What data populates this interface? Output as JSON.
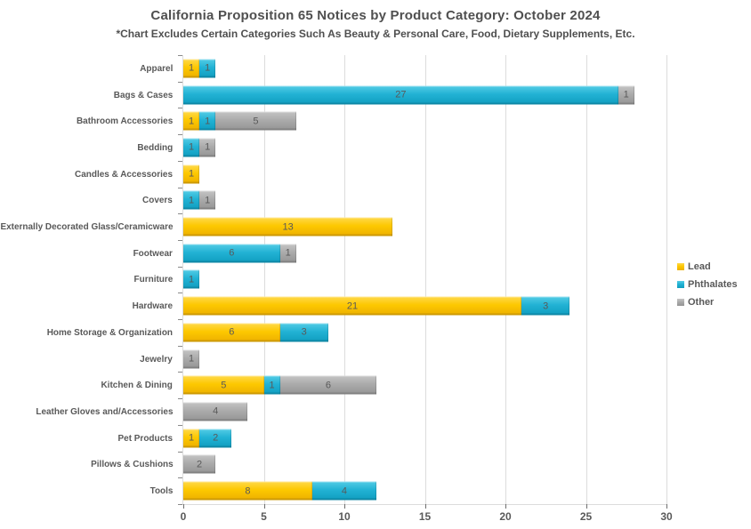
{
  "title": "California Proposition 65 Notices by Product Category: October 2024",
  "subtitle": "*Chart Excludes Certain Categories Such As Beauty & Personal Care, Food, Dietary Supplements, Etc.",
  "colors": {
    "text": "#595959",
    "title_text": "#4f4f4f",
    "gridline": "#dcdcdc",
    "tick": "#6e6e6e",
    "background": "#ffffff"
  },
  "chart_data": {
    "type": "bar",
    "orientation": "horizontal",
    "stacked": true,
    "title": "California Proposition 65 Notices by Product Category: October 2024",
    "subtitle": "*Chart Excludes Certain Categories Such As Beauty & Personal Care, Food, Dietary Supplements, Etc.",
    "xlabel": "",
    "ylabel": "",
    "xlim": [
      0,
      30
    ],
    "x_ticks": [
      0,
      5,
      10,
      15,
      20,
      25,
      30
    ],
    "grid": "vertical",
    "legend_position": "right",
    "categories": [
      "Apparel",
      "Bags & Cases",
      "Bathroom Accessories",
      "Bedding",
      "Candles & Accessories",
      "Covers",
      "Externally Decorated Glass/Ceramicware",
      "Footwear",
      "Furniture",
      "Hardware",
      "Home Storage & Organization",
      "Jewelry",
      "Kitchen & Dining",
      "Leather Gloves and/Accessories",
      "Pet Products",
      "Pillows & Cushions",
      "Tools"
    ],
    "series": [
      {
        "name": "Lead",
        "color_light": "#ffd94d",
        "color_base": "#fdc800",
        "color_dark": "#edb000",
        "values": [
          1,
          0,
          1,
          0,
          1,
          0,
          13,
          0,
          0,
          21,
          6,
          0,
          5,
          0,
          1,
          0,
          8
        ]
      },
      {
        "name": "Phthalates",
        "color_light": "#54cce6",
        "color_base": "#22b2d4",
        "color_dark": "#0f9dbf",
        "values": [
          1,
          27,
          1,
          1,
          0,
          1,
          0,
          6,
          1,
          3,
          3,
          0,
          1,
          0,
          2,
          0,
          4
        ]
      },
      {
        "name": "Other",
        "color_light": "#c4c4c4",
        "color_base": "#ababab",
        "color_dark": "#949494",
        "values": [
          0,
          1,
          5,
          1,
          0,
          1,
          0,
          1,
          0,
          0,
          0,
          1,
          6,
          4,
          0,
          2,
          0
        ]
      }
    ]
  }
}
